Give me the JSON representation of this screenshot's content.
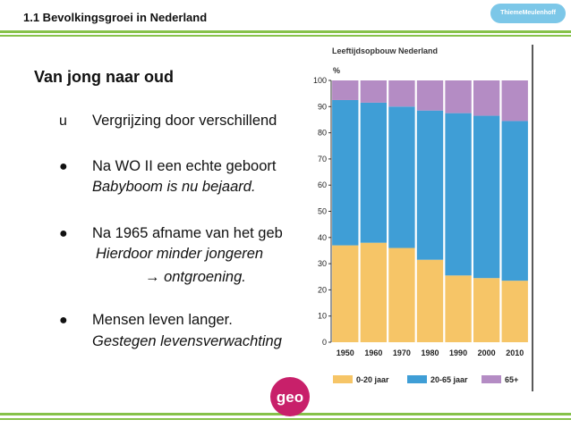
{
  "header": {
    "title": "1.1   Bevolkingsgroei in Nederland",
    "logo_text": "ThiemeMeulenhoff"
  },
  "section_title": "Van jong naar oud",
  "bullets": [
    {
      "marker": "u",
      "line1": "Vergrijzing door verschillend",
      "line2": ""
    },
    {
      "marker": "●",
      "line1": "Na WO II een echte geboort",
      "line2": "Babyboom is nu bejaard."
    },
    {
      "marker": "●",
      "line1": "Na 1965 afname van het geb",
      "line2": "Hierdoor minder jongeren",
      "line3": "→ ontgroening."
    },
    {
      "marker": "●",
      "line1": "Mensen leven langer.",
      "line2": "Gestegen levensverwachting"
    }
  ],
  "logo": {
    "text": "geo"
  },
  "colors": {
    "young": "#f6c567",
    "middle": "#3f9ed6",
    "old": "#b48cc4",
    "accent_green": "#86c24a"
  },
  "chart_data": {
    "type": "bar",
    "stacked": true,
    "title": "Leeftijdsopbouw Nederland",
    "ylabel": "%",
    "ylim": [
      0,
      100
    ],
    "yticks": [
      0,
      10,
      20,
      30,
      40,
      50,
      60,
      70,
      80,
      90,
      100
    ],
    "categories": [
      "1950",
      "1960",
      "1970",
      "1980",
      "1990",
      "2000",
      "2010"
    ],
    "series": [
      {
        "name": "0-20 jaar",
        "values": [
          37,
          38,
          36,
          31.5,
          25.5,
          24.5,
          23.5
        ]
      },
      {
        "name": "20-65 jaar",
        "values": [
          55.5,
          53.5,
          54,
          57,
          62,
          62,
          61
        ]
      },
      {
        "name": "65+",
        "values": [
          7.5,
          8.5,
          10,
          11.5,
          12.5,
          13.5,
          15.5
        ]
      }
    ],
    "legend_position": "bottom"
  }
}
